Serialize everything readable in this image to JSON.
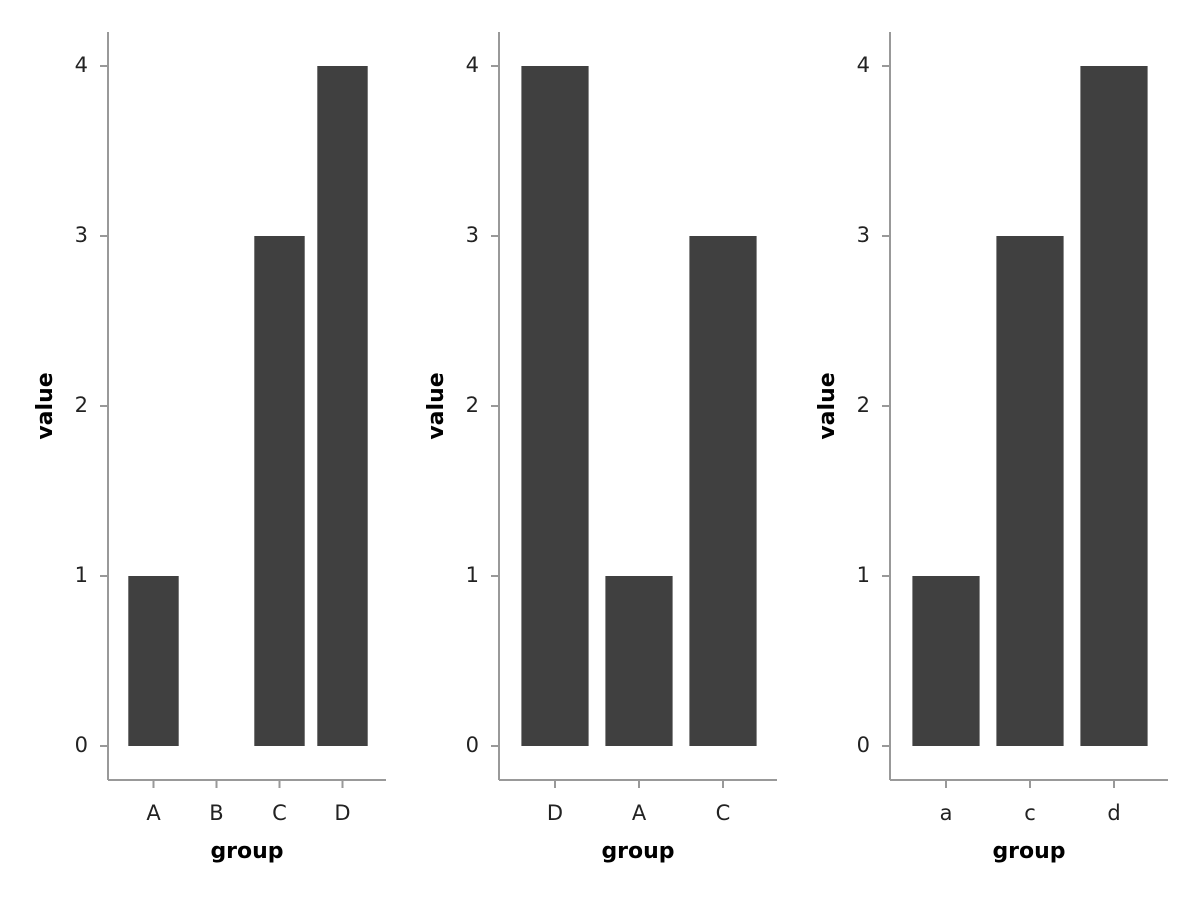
{
  "chart_data": [
    {
      "type": "bar",
      "x_label": "group",
      "y_label": "value",
      "categories": [
        "A",
        "B",
        "C",
        "D"
      ],
      "values": [
        1,
        null,
        3,
        4
      ],
      "color": "#404040",
      "ylim": [
        -0.2,
        4.2
      ],
      "yticks": [
        0,
        1,
        2,
        3,
        4
      ]
    },
    {
      "type": "bar",
      "x_label": "group",
      "y_label": "value",
      "categories": [
        "D",
        "A",
        "C"
      ],
      "values": [
        4,
        1,
        3
      ],
      "color": "#404040",
      "ylim": [
        -0.2,
        4.2
      ],
      "yticks": [
        0,
        1,
        2,
        3,
        4
      ]
    },
    {
      "type": "bar",
      "x_label": "group",
      "y_label": "value",
      "categories": [
        "a",
        "c",
        "d"
      ],
      "values": [
        1,
        3,
        4
      ],
      "color": "#404040",
      "ylim": [
        -0.2,
        4.2
      ],
      "yticks": [
        0,
        1,
        2,
        3,
        4
      ]
    }
  ]
}
